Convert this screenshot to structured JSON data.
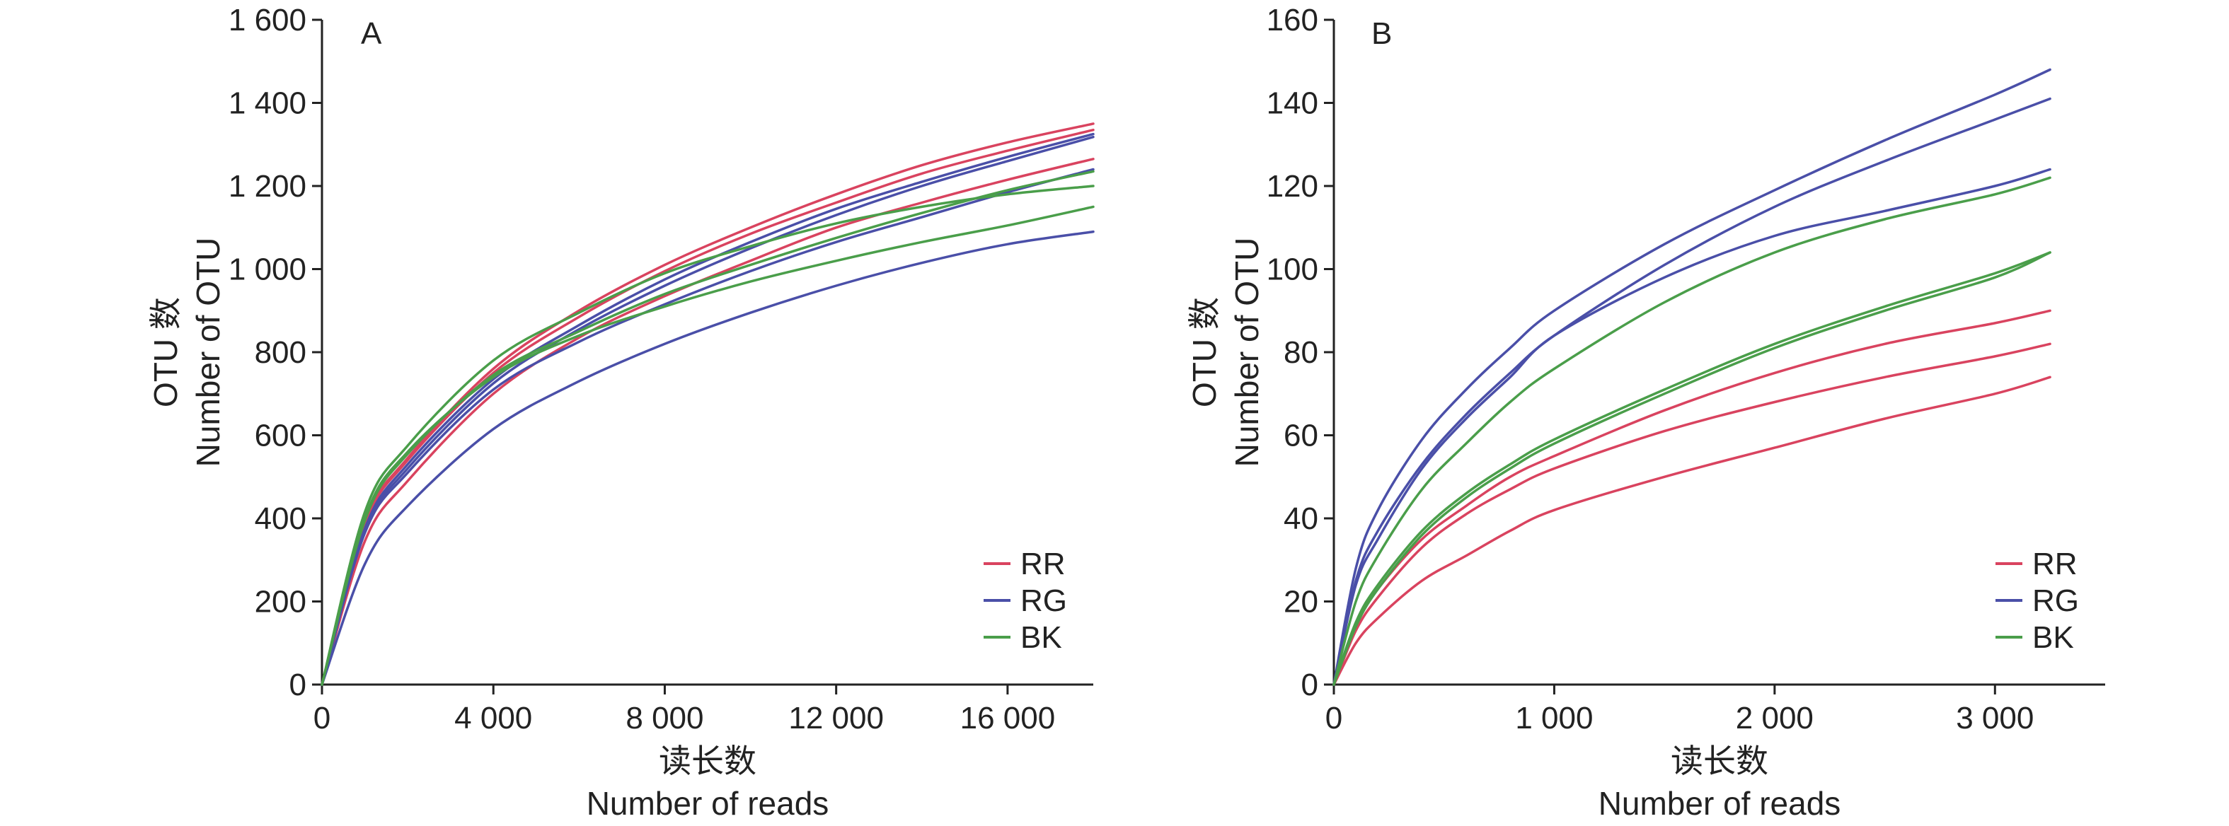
{
  "colors": {
    "RR": "#d9435f",
    "RG": "#4a4fa8",
    "BK": "#4a9e4a"
  },
  "chart_data": [
    {
      "type": "line",
      "panel_label": "A",
      "xlabel_cn": "读长数",
      "xlabel": "Number of reads",
      "ylabel_cn": "OTU 数",
      "ylabel": "Number of OTU",
      "xlim": [
        0,
        18000
      ],
      "ylim": [
        0,
        1600
      ],
      "x_ticks": [
        0,
        4000,
        8000,
        12000,
        16000
      ],
      "x_tick_labels": [
        "0",
        "4 000",
        "8 000",
        "12 000",
        "16 000"
      ],
      "y_ticks": [
        0,
        200,
        400,
        600,
        800,
        1000,
        1200,
        1400,
        1600
      ],
      "y_tick_labels": [
        "0",
        "200",
        "400",
        "600",
        "800",
        "1 000",
        "1 200",
        "1 400",
        "1 600"
      ],
      "legend": {
        "position": "bottom-right",
        "entries": [
          "RR",
          "RG",
          "BK"
        ]
      },
      "series": [
        {
          "name": "RR",
          "x": [
            0,
            1000,
            2000,
            4000,
            6000,
            8000,
            10000,
            12000,
            14000,
            16000,
            18000
          ],
          "y": [
            0,
            390,
            545,
            760,
            900,
            1010,
            1100,
            1180,
            1250,
            1305,
            1350
          ]
        },
        {
          "name": "RR",
          "x": [
            0,
            1000,
            2000,
            4000,
            6000,
            8000,
            10000,
            12000,
            14000,
            16000,
            18000
          ],
          "y": [
            0,
            385,
            540,
            750,
            885,
            995,
            1085,
            1160,
            1230,
            1285,
            1335
          ]
        },
        {
          "name": "RR",
          "x": [
            0,
            1000,
            2000,
            4000,
            6000,
            8000,
            10000,
            12000,
            14000,
            16000,
            18000
          ],
          "y": [
            0,
            345,
            490,
            700,
            835,
            935,
            1020,
            1100,
            1160,
            1215,
            1265
          ]
        },
        {
          "name": "RG",
          "x": [
            0,
            1000,
            2000,
            4000,
            6000,
            8000,
            10000,
            12000,
            14000,
            16000,
            18000
          ],
          "y": [
            0,
            375,
            530,
            735,
            865,
            975,
            1065,
            1145,
            1210,
            1270,
            1325
          ]
        },
        {
          "name": "RG",
          "x": [
            0,
            1000,
            2000,
            4000,
            6000,
            8000,
            10000,
            12000,
            14000,
            16000,
            18000
          ],
          "y": [
            0,
            370,
            520,
            725,
            855,
            960,
            1050,
            1130,
            1200,
            1260,
            1318
          ]
        },
        {
          "name": "RG",
          "x": [
            0,
            1000,
            2000,
            4000,
            6000,
            8000,
            10000,
            12000,
            14000,
            16000,
            18000
          ],
          "y": [
            0,
            365,
            510,
            710,
            825,
            915,
            995,
            1065,
            1125,
            1185,
            1240
          ]
        },
        {
          "name": "RG",
          "x": [
            0,
            1000,
            2000,
            4000,
            6000,
            8000,
            10000,
            12000,
            14000,
            16000,
            18000
          ],
          "y": [
            0,
            290,
            430,
            615,
            730,
            820,
            895,
            960,
            1015,
            1060,
            1090
          ]
        },
        {
          "name": "BK",
          "x": [
            0,
            1000,
            2000,
            4000,
            6000,
            8000,
            10000,
            12000,
            14000,
            16000,
            18000
          ],
          "y": [
            0,
            415,
            575,
            780,
            895,
            990,
            1055,
            1110,
            1150,
            1180,
            1200
          ]
        },
        {
          "name": "BK",
          "x": [
            0,
            1000,
            2000,
            4000,
            6000,
            8000,
            10000,
            12000,
            14000,
            16000,
            18000
          ],
          "y": [
            0,
            395,
            555,
            745,
            850,
            940,
            1010,
            1075,
            1135,
            1190,
            1235
          ]
        },
        {
          "name": "BK",
          "x": [
            0,
            1000,
            2000,
            4000,
            6000,
            8000,
            10000,
            12000,
            14000,
            16000,
            18000
          ],
          "y": [
            0,
            400,
            560,
            740,
            840,
            910,
            970,
            1020,
            1065,
            1105,
            1150
          ]
        }
      ]
    },
    {
      "type": "line",
      "panel_label": "B",
      "xlabel_cn": "读长数",
      "xlabel": "Number of reads",
      "ylabel_cn": "OTU 数",
      "ylabel": "Number of OTU",
      "xlim": [
        0,
        3500
      ],
      "ylim": [
        0,
        160
      ],
      "x_ticks": [
        0,
        1000,
        2000,
        3000
      ],
      "x_tick_labels": [
        "0",
        "1 000",
        "2 000",
        "3 000"
      ],
      "y_ticks": [
        0,
        20,
        40,
        60,
        80,
        100,
        120,
        140,
        160
      ],
      "y_tick_labels": [
        "0",
        "20",
        "40",
        "60",
        "80",
        "100",
        "120",
        "140",
        "160"
      ],
      "legend": {
        "position": "bottom-right",
        "entries": [
          "RR",
          "RG",
          "BK"
        ]
      },
      "series": [
        {
          "name": "RR",
          "x": [
            0,
            100,
            200,
            400,
            600,
            800,
            1000,
            1500,
            2000,
            2500,
            3000,
            3250
          ],
          "y": [
            0,
            14,
            23,
            35,
            43,
            50,
            55,
            66,
            75,
            82,
            87,
            90
          ]
        },
        {
          "name": "RR",
          "x": [
            0,
            100,
            200,
            400,
            600,
            800,
            1000,
            1500,
            2000,
            2500,
            3000,
            3250
          ],
          "y": [
            0,
            13,
            21,
            33,
            41,
            47,
            52,
            61,
            68,
            74,
            79,
            82
          ]
        },
        {
          "name": "RR",
          "x": [
            0,
            100,
            200,
            400,
            600,
            800,
            1000,
            1500,
            2000,
            2500,
            3000,
            3250
          ],
          "y": [
            0,
            10,
            16,
            25,
            31,
            37,
            42,
            50,
            57,
            64,
            70,
            74
          ]
        },
        {
          "name": "RG",
          "x": [
            0,
            100,
            200,
            400,
            600,
            800,
            1000,
            1500,
            2000,
            2500,
            3000,
            3250
          ],
          "y": [
            0,
            28,
            42,
            59,
            71,
            81,
            90,
            106,
            119,
            131,
            142,
            148
          ]
        },
        {
          "name": "RG",
          "x": [
            0,
            100,
            200,
            400,
            600,
            800,
            1000,
            1500,
            2000,
            2500,
            3000,
            3250
          ],
          "y": [
            0,
            25,
            37,
            53,
            65,
            75,
            84,
            101,
            115,
            126,
            136,
            141
          ]
        },
        {
          "name": "RG",
          "x": [
            0,
            100,
            200,
            400,
            600,
            800,
            1000,
            1500,
            2000,
            2500,
            3000,
            3250
          ],
          "y": [
            0,
            24,
            35,
            52,
            64,
            74,
            84,
            98,
            108,
            114,
            120,
            124
          ]
        },
        {
          "name": "BK",
          "x": [
            0,
            100,
            200,
            400,
            600,
            800,
            1000,
            1500,
            2000,
            2500,
            3000,
            3250
          ],
          "y": [
            0,
            20,
            31,
            47,
            58,
            68,
            76,
            92,
            104,
            112,
            118,
            122
          ]
        },
        {
          "name": "BK",
          "x": [
            0,
            100,
            200,
            400,
            600,
            800,
            1000,
            1500,
            2000,
            2500,
            3000,
            3250
          ],
          "y": [
            0,
            15,
            24,
            37,
            46,
            53,
            59,
            71,
            82,
            91,
            99,
            104
          ]
        },
        {
          "name": "BK",
          "x": [
            0,
            100,
            200,
            400,
            600,
            800,
            1000,
            1500,
            2000,
            2500,
            3000,
            3250
          ],
          "y": [
            0,
            14,
            23,
            36,
            45,
            52,
            58,
            70,
            81,
            90,
            98,
            104
          ]
        }
      ]
    }
  ]
}
